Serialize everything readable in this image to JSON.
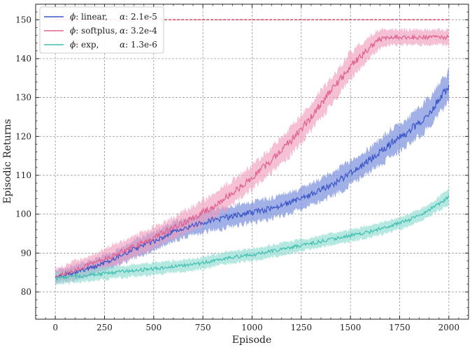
{
  "chart_data": {
    "type": "line",
    "title": "",
    "xlabel": "Episode",
    "ylabel": "Episodic Returns",
    "xlim": [
      -100,
      2100
    ],
    "ylim": [
      73,
      154
    ],
    "x_ticks": [
      0,
      250,
      500,
      750,
      1000,
      1250,
      1500,
      1750,
      2000
    ],
    "y_ticks": [
      80,
      90,
      100,
      110,
      120,
      130,
      140,
      150
    ],
    "grid": true,
    "legend_position": "top-left",
    "reference_line": {
      "y": 150,
      "x_range": [
        0,
        2000
      ],
      "color": "#d62748",
      "style": "dashed"
    },
    "series": [
      {
        "name": "linear",
        "legend_prefix": "ϕ: ",
        "legend_alpha": "α: 2.1e-5",
        "color": "#3a55c8",
        "band_color": "#6f85d8",
        "x": [
          0,
          100,
          200,
          300,
          400,
          500,
          600,
          700,
          800,
          900,
          1000,
          1100,
          1200,
          1300,
          1400,
          1500,
          1600,
          1700,
          1800,
          1900,
          2000
        ],
        "values": [
          84,
          85,
          86.5,
          88.5,
          91,
          93,
          95.5,
          97,
          98.5,
          99.5,
          100.5,
          101.5,
          103,
          105,
          107.5,
          110.5,
          114,
          118,
          121.5,
          126,
          133
        ],
        "band_width": [
          2,
          2.5,
          2.5,
          2.5,
          3,
          3,
          3,
          3,
          3.5,
          3.5,
          3.5,
          3.5,
          3.5,
          3.5,
          4,
          4,
          4,
          4.5,
          4.5,
          5,
          5
        ]
      },
      {
        "name": "softplus",
        "legend_prefix": "ϕ: ",
        "legend_alpha": "α: 3.2e-4",
        "color": "#e0608e",
        "band_color": "#ef9dbd",
        "x": [
          0,
          100,
          200,
          300,
          400,
          500,
          600,
          700,
          800,
          900,
          1000,
          1100,
          1200,
          1300,
          1400,
          1500,
          1600,
          1650,
          1700,
          1800,
          1900,
          2000
        ],
        "values": [
          84,
          85.5,
          87.5,
          89.5,
          91.5,
          94,
          96.5,
          99,
          102,
          105.5,
          109.5,
          114,
          119,
          125,
          131.5,
          138,
          143,
          145,
          145.5,
          145.5,
          145.5,
          145.5
        ],
        "band_width": [
          2.5,
          3,
          3,
          3.5,
          3.5,
          3.5,
          3.5,
          4,
          4,
          4,
          4,
          4,
          4.5,
          4.5,
          4.5,
          4.5,
          3.5,
          3,
          2.5,
          2.5,
          2.5,
          2.5
        ]
      },
      {
        "name": "exp",
        "legend_prefix": "ϕ: ",
        "legend_alpha": "α: 1.3e-6",
        "color": "#3fbfb0",
        "band_color": "#8fdcd2",
        "x": [
          0,
          100,
          200,
          300,
          400,
          500,
          600,
          700,
          800,
          900,
          1000,
          1100,
          1200,
          1300,
          1400,
          1500,
          1600,
          1700,
          1800,
          1900,
          2000
        ],
        "values": [
          83.5,
          84,
          84.5,
          85,
          85.5,
          86,
          86.5,
          87,
          88,
          89,
          89.5,
          90.5,
          91.5,
          92.5,
          93.5,
          94.5,
          95.5,
          97,
          98.5,
          101,
          104.5
        ],
        "band_width": [
          2,
          2,
          2,
          2,
          2,
          2,
          2,
          2,
          2,
          2,
          2,
          2,
          2,
          2,
          2,
          2,
          2,
          2,
          2,
          2,
          2.5
        ]
      }
    ]
  }
}
